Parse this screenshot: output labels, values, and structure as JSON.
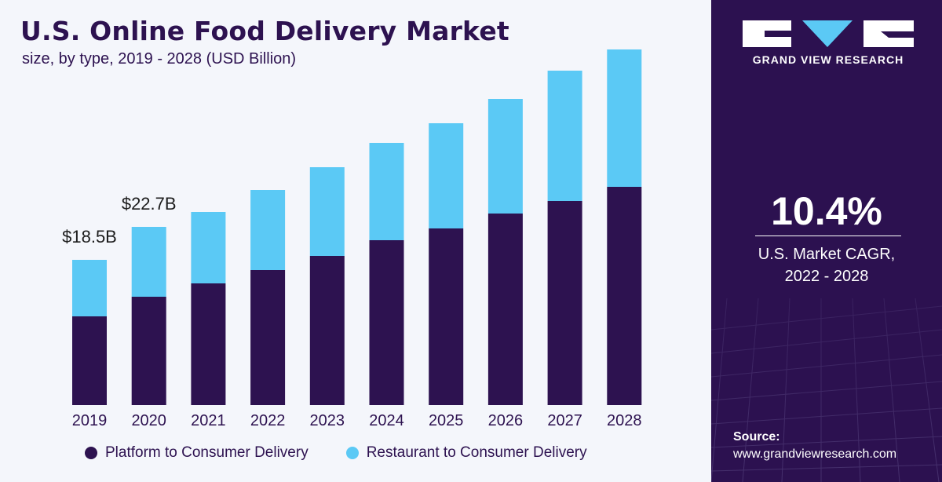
{
  "header": {
    "title": "U.S. Online Food Delivery Market",
    "subtitle": "size, by type, 2019 - 2028 (USD Billion)"
  },
  "chart_data": {
    "type": "bar",
    "stacked": true,
    "categories": [
      "2019",
      "2020",
      "2021",
      "2022",
      "2023",
      "2024",
      "2025",
      "2026",
      "2027",
      "2028"
    ],
    "series": [
      {
        "name": "Platform to Consumer Delivery",
        "color": "#2d1250",
        "values": [
          11.3,
          13.8,
          15.5,
          17.2,
          19.0,
          21.0,
          22.5,
          24.4,
          26.0,
          27.8
        ]
      },
      {
        "name": "Restaurant to Consumer Delivery",
        "color": "#5bc9f5",
        "values": [
          7.2,
          8.9,
          9.1,
          10.2,
          11.3,
          12.4,
          13.4,
          14.6,
          16.6,
          17.5
        ]
      }
    ],
    "annotations": [
      {
        "category": "2019",
        "text": "$18.5B"
      },
      {
        "category": "2020",
        "text": "$22.7B"
      }
    ],
    "ylim": [
      0,
      50
    ],
    "grid": false,
    "legend": "bottom"
  },
  "sidebar": {
    "brand": "GRAND VIEW RESEARCH",
    "cagr_value": "10.4%",
    "cagr_label_line1": "U.S. Market CAGR,",
    "cagr_label_line2": "2022 - 2028",
    "source_title": "Source:",
    "source_url": "www.grandviewresearch.com"
  }
}
